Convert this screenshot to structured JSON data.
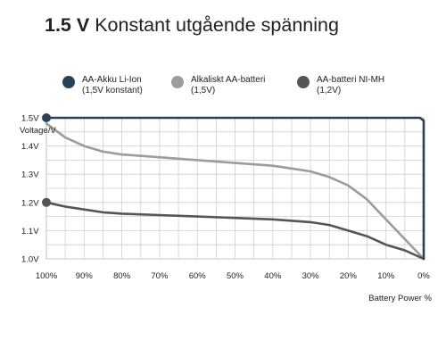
{
  "title": {
    "bold": "1.5 V",
    "rest": "Konstant utgående spänning"
  },
  "legend": [
    {
      "line1": "AA-Akku Li-Ion",
      "line2": "(1,5V konstant)",
      "color": "#2a4257"
    },
    {
      "line1": "Alkaliskt AA-batteri",
      "line2": "(1,5V)",
      "color": "#9c9c9c"
    },
    {
      "line1": "AA-batteri NI-MH",
      "line2": "(1,2V)",
      "color": "#555555"
    }
  ],
  "chart_data": {
    "type": "line",
    "xlabel": "Battery Power %",
    "ylabel": "Voltage/V",
    "x_ticks": [
      "100%",
      "90%",
      "80%",
      "70%",
      "60%",
      "50%",
      "40%",
      "30%",
      "20%",
      "10%",
      "0%"
    ],
    "y_ticks": [
      "1.0V",
      "1.1V",
      "1.2V",
      "1.3V",
      "1.4V",
      "1.5V"
    ],
    "xlim": [
      100,
      0
    ],
    "ylim": [
      1.0,
      1.5
    ],
    "grid": true,
    "series": [
      {
        "name": "AA-Akku Li-Ion (1,5V konstant)",
        "color": "#2a4257",
        "x": [
          100,
          90,
          80,
          70,
          60,
          50,
          40,
          30,
          20,
          10,
          1,
          0,
          0
        ],
        "y": [
          1.5,
          1.5,
          1.5,
          1.5,
          1.5,
          1.5,
          1.5,
          1.5,
          1.5,
          1.5,
          1.5,
          1.49,
          1.0
        ]
      },
      {
        "name": "Alkaliskt AA-batteri (1,5V)",
        "color": "#9c9c9c",
        "x": [
          100,
          95,
          90,
          85,
          80,
          70,
          60,
          50,
          40,
          30,
          25,
          20,
          15,
          10,
          5,
          0
        ],
        "y": [
          1.48,
          1.43,
          1.4,
          1.38,
          1.37,
          1.36,
          1.35,
          1.34,
          1.33,
          1.31,
          1.29,
          1.26,
          1.21,
          1.14,
          1.07,
          1.0
        ]
      },
      {
        "name": "AA-batteri NI-MH (1,2V)",
        "color": "#555555",
        "x": [
          100,
          95,
          90,
          85,
          80,
          70,
          60,
          50,
          40,
          30,
          25,
          20,
          15,
          10,
          5,
          0
        ],
        "y": [
          1.2,
          1.185,
          1.175,
          1.165,
          1.16,
          1.155,
          1.15,
          1.145,
          1.14,
          1.13,
          1.12,
          1.1,
          1.08,
          1.05,
          1.03,
          1.0
        ]
      }
    ],
    "markers": [
      {
        "x": 100,
        "y": 1.5,
        "color": "#2a4257"
      },
      {
        "x": 100,
        "y": 1.2,
        "color": "#555555"
      }
    ]
  }
}
